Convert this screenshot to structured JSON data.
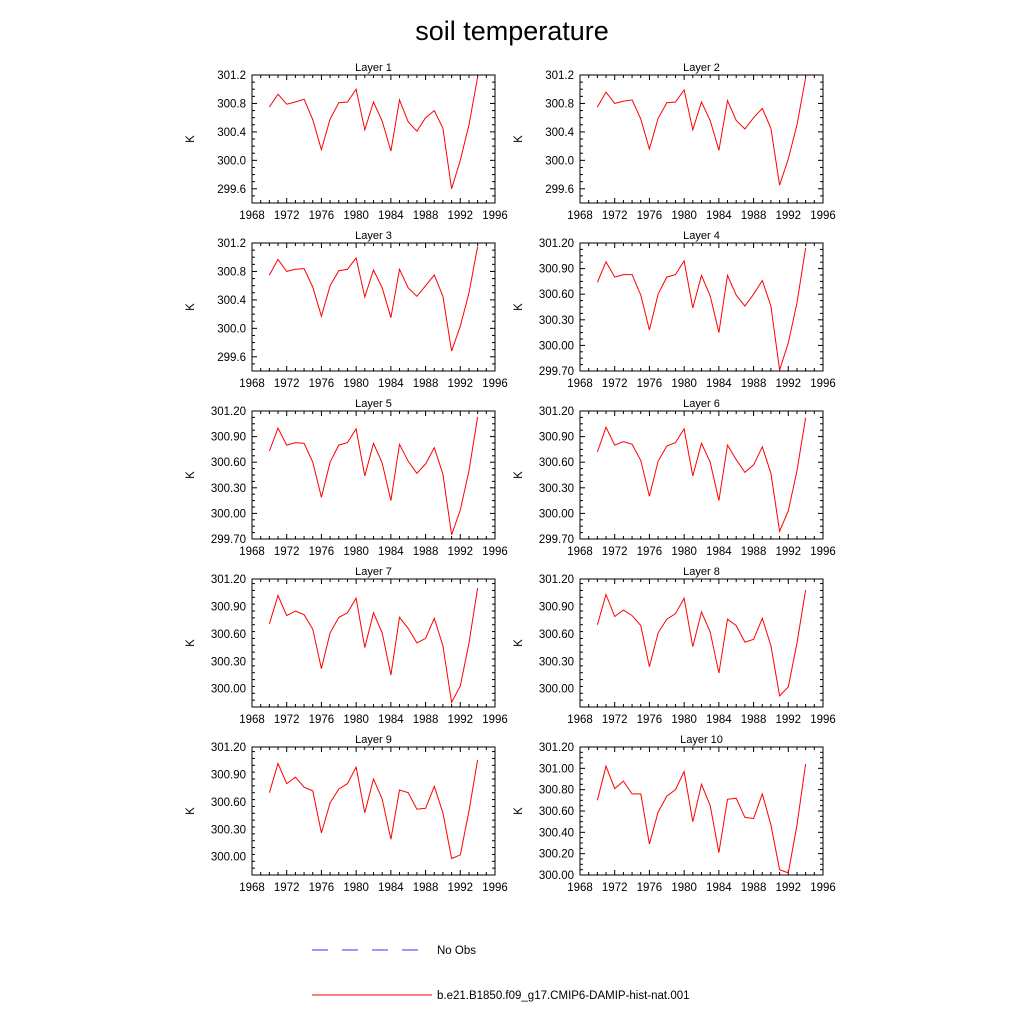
{
  "figure": {
    "title": "soil temperature"
  },
  "legend": {
    "entries": [
      {
        "label": "No Obs",
        "color": "#3333ff",
        "style": "dashed"
      },
      {
        "label": "b.e21.B1850.f09_g17.CMIP6-DAMIP-hist-nat.001",
        "color": "#ff0000",
        "style": "solid"
      }
    ]
  },
  "chart_data": [
    {
      "type": "line",
      "title": "Layer 1",
      "xlabel": "",
      "ylabel": "K",
      "xlim": [
        1968,
        1996
      ],
      "ylim": [
        299.4,
        301.2
      ],
      "xticks": [
        1968,
        1972,
        1976,
        1980,
        1984,
        1988,
        1992,
        1996
      ],
      "yticks": [
        299.6,
        300.0,
        300.4,
        300.8,
        301.2
      ],
      "ytick_labels": [
        "299.6",
        "300.0",
        "300.4",
        "300.8",
        "301.2"
      ],
      "series": [
        {
          "color": "#ff0000",
          "x": [
            1970,
            1971,
            1972,
            1973,
            1974,
            1975,
            1976,
            1977,
            1978,
            1979,
            1980,
            1981,
            1982,
            1983,
            1984,
            1985,
            1986,
            1987,
            1988,
            1989,
            1990,
            1991,
            1992,
            1993,
            1994
          ],
          "y": [
            300.75,
            300.93,
            300.79,
            300.82,
            300.86,
            300.57,
            300.15,
            300.58,
            300.81,
            300.82,
            301.0,
            300.43,
            300.82,
            300.55,
            300.13,
            300.85,
            300.54,
            300.41,
            300.6,
            300.7,
            300.45,
            299.6,
            300.0,
            300.5,
            301.17
          ]
        }
      ]
    },
    {
      "type": "line",
      "title": "Layer 2",
      "xlabel": "",
      "ylabel": "K",
      "xlim": [
        1968,
        1996
      ],
      "ylim": [
        299.4,
        301.2
      ],
      "xticks": [
        1968,
        1972,
        1976,
        1980,
        1984,
        1988,
        1992,
        1996
      ],
      "yticks": [
        299.6,
        300.0,
        300.4,
        300.8,
        301.2
      ],
      "ytick_labels": [
        "299.6",
        "300.0",
        "300.4",
        "300.8",
        "301.2"
      ],
      "series": [
        {
          "color": "#ff0000",
          "x": [
            1970,
            1971,
            1972,
            1973,
            1974,
            1975,
            1976,
            1977,
            1978,
            1979,
            1980,
            1981,
            1982,
            1983,
            1984,
            1985,
            1986,
            1987,
            1988,
            1989,
            1990,
            1991,
            1992,
            1993,
            1994
          ],
          "y": [
            300.75,
            300.96,
            300.8,
            300.83,
            300.85,
            300.58,
            300.16,
            300.59,
            300.81,
            300.82,
            300.99,
            300.43,
            300.82,
            300.56,
            300.14,
            300.84,
            300.56,
            300.44,
            300.6,
            300.73,
            300.45,
            299.65,
            300.02,
            300.5,
            301.16
          ]
        }
      ]
    },
    {
      "type": "line",
      "title": "Layer 3",
      "xlabel": "",
      "ylabel": "K",
      "xlim": [
        1968,
        1996
      ],
      "ylim": [
        299.4,
        301.2
      ],
      "xticks": [
        1968,
        1972,
        1976,
        1980,
        1984,
        1988,
        1992,
        1996
      ],
      "yticks": [
        299.6,
        300.0,
        300.4,
        300.8,
        301.2
      ],
      "ytick_labels": [
        "299.6",
        "300.0",
        "300.4",
        "300.8",
        "301.2"
      ],
      "series": [
        {
          "color": "#ff0000",
          "x": [
            1970,
            1971,
            1972,
            1973,
            1974,
            1975,
            1976,
            1977,
            1978,
            1979,
            1980,
            1981,
            1982,
            1983,
            1984,
            1985,
            1986,
            1987,
            1988,
            1989,
            1990,
            1991,
            1992,
            1993,
            1994
          ],
          "y": [
            300.75,
            300.97,
            300.8,
            300.83,
            300.84,
            300.58,
            300.17,
            300.6,
            300.81,
            300.83,
            300.99,
            300.44,
            300.82,
            300.57,
            300.15,
            300.83,
            300.57,
            300.45,
            300.6,
            300.75,
            300.45,
            299.68,
            300.03,
            300.5,
            301.15
          ]
        }
      ]
    },
    {
      "type": "line",
      "title": "Layer 4",
      "xlabel": "",
      "ylabel": "K",
      "xlim": [
        1968,
        1996
      ],
      "ylim": [
        299.7,
        301.2
      ],
      "xticks": [
        1968,
        1972,
        1976,
        1980,
        1984,
        1988,
        1992,
        1996
      ],
      "yticks": [
        299.7,
        300.0,
        300.3,
        300.6,
        300.9,
        301.2
      ],
      "ytick_labels": [
        "299.70",
        "300.00",
        "300.30",
        "300.60",
        "300.90",
        "301.20"
      ],
      "series": [
        {
          "color": "#ff0000",
          "x": [
            1970,
            1971,
            1972,
            1973,
            1974,
            1975,
            1976,
            1977,
            1978,
            1979,
            1980,
            1981,
            1982,
            1983,
            1984,
            1985,
            1986,
            1987,
            1988,
            1989,
            1990,
            1991,
            1992,
            1993,
            1994
          ],
          "y": [
            300.74,
            300.98,
            300.8,
            300.83,
            300.83,
            300.59,
            300.18,
            300.6,
            300.8,
            300.83,
            300.99,
            300.44,
            300.82,
            300.58,
            300.15,
            300.82,
            300.59,
            300.46,
            300.6,
            300.76,
            300.46,
            299.71,
            300.03,
            300.5,
            301.14
          ]
        }
      ]
    },
    {
      "type": "line",
      "title": "Layer 5",
      "xlabel": "",
      "ylabel": "K",
      "xlim": [
        1968,
        1996
      ],
      "ylim": [
        299.7,
        301.2
      ],
      "xticks": [
        1968,
        1972,
        1976,
        1980,
        1984,
        1988,
        1992,
        1996
      ],
      "yticks": [
        299.7,
        300.0,
        300.3,
        300.6,
        300.9,
        301.2
      ],
      "ytick_labels": [
        "299.70",
        "300.00",
        "300.30",
        "300.60",
        "300.90",
        "301.20"
      ],
      "series": [
        {
          "color": "#ff0000",
          "x": [
            1970,
            1971,
            1972,
            1973,
            1974,
            1975,
            1976,
            1977,
            1978,
            1979,
            1980,
            1981,
            1982,
            1983,
            1984,
            1985,
            1986,
            1987,
            1988,
            1989,
            1990,
            1991,
            1992,
            1993,
            1994
          ],
          "y": [
            300.73,
            301.0,
            300.8,
            300.83,
            300.82,
            300.6,
            300.19,
            300.6,
            300.8,
            300.83,
            300.99,
            300.44,
            300.82,
            300.59,
            300.15,
            300.81,
            300.61,
            300.47,
            300.58,
            300.77,
            300.46,
            299.75,
            300.04,
            300.5,
            301.13
          ]
        }
      ]
    },
    {
      "type": "line",
      "title": "Layer 6",
      "xlabel": "",
      "ylabel": "K",
      "xlim": [
        1968,
        1996
      ],
      "ylim": [
        299.7,
        301.2
      ],
      "xticks": [
        1968,
        1972,
        1976,
        1980,
        1984,
        1988,
        1992,
        1996
      ],
      "yticks": [
        299.7,
        300.0,
        300.3,
        300.6,
        300.9,
        301.2
      ],
      "ytick_labels": [
        "299.70",
        "300.00",
        "300.30",
        "300.60",
        "300.90",
        "301.20"
      ],
      "series": [
        {
          "color": "#ff0000",
          "x": [
            1970,
            1971,
            1972,
            1973,
            1974,
            1975,
            1976,
            1977,
            1978,
            1979,
            1980,
            1981,
            1982,
            1983,
            1984,
            1985,
            1986,
            1987,
            1988,
            1989,
            1990,
            1991,
            1992,
            1993,
            1994
          ],
          "y": [
            300.72,
            301.01,
            300.8,
            300.84,
            300.81,
            300.62,
            300.2,
            300.61,
            300.79,
            300.83,
            300.99,
            300.44,
            300.82,
            300.6,
            300.15,
            300.8,
            300.63,
            300.48,
            300.57,
            300.78,
            300.47,
            299.79,
            300.03,
            300.5,
            301.12
          ]
        }
      ]
    },
    {
      "type": "line",
      "title": "Layer 7",
      "xlabel": "",
      "ylabel": "K",
      "xlim": [
        1968,
        1996
      ],
      "ylim": [
        299.8,
        301.2
      ],
      "xticks": [
        1968,
        1972,
        1976,
        1980,
        1984,
        1988,
        1992,
        1996
      ],
      "yticks": [
        300.0,
        300.3,
        300.6,
        300.9,
        301.2
      ],
      "ytick_labels": [
        "300.00",
        "300.30",
        "300.60",
        "300.90",
        "301.20"
      ],
      "series": [
        {
          "color": "#ff0000",
          "x": [
            1970,
            1971,
            1972,
            1973,
            1974,
            1975,
            1976,
            1977,
            1978,
            1979,
            1980,
            1981,
            1982,
            1983,
            1984,
            1985,
            1986,
            1987,
            1988,
            1989,
            1990,
            1991,
            1992,
            1993,
            1994
          ],
          "y": [
            300.71,
            301.02,
            300.8,
            300.85,
            300.81,
            300.65,
            300.22,
            300.61,
            300.78,
            300.83,
            300.99,
            300.45,
            300.83,
            300.61,
            300.15,
            300.78,
            300.66,
            300.5,
            300.55,
            300.77,
            300.47,
            299.85,
            300.03,
            300.5,
            301.1
          ]
        }
      ]
    },
    {
      "type": "line",
      "title": "Layer 8",
      "xlabel": "",
      "ylabel": "K",
      "xlim": [
        1968,
        1996
      ],
      "ylim": [
        299.8,
        301.2
      ],
      "xticks": [
        1968,
        1972,
        1976,
        1980,
        1984,
        1988,
        1992,
        1996
      ],
      "yticks": [
        300.0,
        300.3,
        300.6,
        300.9,
        301.2
      ],
      "ytick_labels": [
        "300.00",
        "300.30",
        "300.60",
        "300.90",
        "301.20"
      ],
      "series": [
        {
          "color": "#ff0000",
          "x": [
            1970,
            1971,
            1972,
            1973,
            1974,
            1975,
            1976,
            1977,
            1978,
            1979,
            1980,
            1981,
            1982,
            1983,
            1984,
            1985,
            1986,
            1987,
            1988,
            1989,
            1990,
            1991,
            1992,
            1993,
            1994
          ],
          "y": [
            300.7,
            301.03,
            300.79,
            300.86,
            300.8,
            300.69,
            300.24,
            300.61,
            300.76,
            300.82,
            300.99,
            300.46,
            300.84,
            300.62,
            300.17,
            300.76,
            300.69,
            300.51,
            300.54,
            300.77,
            300.47,
            299.92,
            300.02,
            300.5,
            301.08
          ]
        }
      ]
    },
    {
      "type": "line",
      "title": "Layer 9",
      "xlabel": "",
      "ylabel": "K",
      "xlim": [
        1968,
        1996
      ],
      "ylim": [
        299.8,
        301.2
      ],
      "xticks": [
        1968,
        1972,
        1976,
        1980,
        1984,
        1988,
        1992,
        1996
      ],
      "yticks": [
        300.0,
        300.3,
        300.6,
        300.9,
        301.2
      ],
      "ytick_labels": [
        "300.00",
        "300.30",
        "300.60",
        "300.90",
        "301.20"
      ],
      "series": [
        {
          "color": "#ff0000",
          "x": [
            1970,
            1971,
            1972,
            1973,
            1974,
            1975,
            1976,
            1977,
            1978,
            1979,
            1980,
            1981,
            1982,
            1983,
            1984,
            1985,
            1986,
            1987,
            1988,
            1989,
            1990,
            1991,
            1992,
            1993,
            1994
          ],
          "y": [
            300.7,
            301.02,
            300.8,
            300.87,
            300.76,
            300.72,
            300.26,
            300.59,
            300.74,
            300.8,
            300.98,
            300.48,
            300.85,
            300.63,
            300.19,
            300.73,
            300.7,
            300.52,
            300.53,
            300.77,
            300.48,
            299.98,
            300.02,
            300.5,
            301.06
          ]
        }
      ]
    },
    {
      "type": "line",
      "title": "Layer 10",
      "xlabel": "",
      "ylabel": "K",
      "xlim": [
        1968,
        1996
      ],
      "ylim": [
        300.0,
        301.2
      ],
      "xticks": [
        1968,
        1972,
        1976,
        1980,
        1984,
        1988,
        1992,
        1996
      ],
      "yticks": [
        300.0,
        300.2,
        300.4,
        300.6,
        300.8,
        301.0,
        301.2
      ],
      "ytick_labels": [
        "300.00",
        "300.20",
        "300.40",
        "300.60",
        "300.80",
        "301.00",
        "301.20"
      ],
      "series": [
        {
          "color": "#ff0000",
          "x": [
            1970,
            1971,
            1972,
            1973,
            1974,
            1975,
            1976,
            1977,
            1978,
            1979,
            1980,
            1981,
            1982,
            1983,
            1984,
            1985,
            1986,
            1987,
            1988,
            1989,
            1990,
            1991,
            1992,
            1993,
            1994
          ],
          "y": [
            300.7,
            301.02,
            300.81,
            300.88,
            300.76,
            300.76,
            300.29,
            300.59,
            300.74,
            300.8,
            300.97,
            300.5,
            300.85,
            300.65,
            300.21,
            300.71,
            300.72,
            300.54,
            300.53,
            300.76,
            300.47,
            300.05,
            300.02,
            300.47,
            301.04
          ]
        }
      ]
    }
  ]
}
